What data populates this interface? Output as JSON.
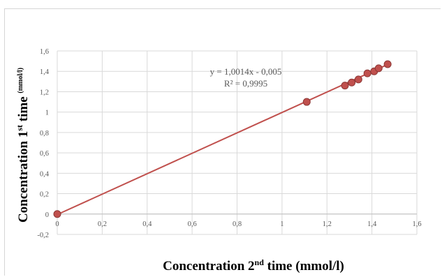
{
  "chart_data": {
    "type": "scatter",
    "xlabel": {
      "main": "Concentration 2",
      "sup": "nd",
      "rest": " time (mmol/l)"
    },
    "ylabel": {
      "main": "Concentration 1",
      "sup": "st",
      "rest": " time ",
      "unit": "(mmol/l)"
    },
    "xlim": [
      0,
      1.6
    ],
    "ylim": [
      -0.2,
      1.6
    ],
    "x_ticks": [
      "0",
      "0,2",
      "0,4",
      "0,6",
      "0,8",
      "1",
      "1,2",
      "1,4",
      "1,6"
    ],
    "y_ticks": [
      "-0,2",
      "0",
      "0,2",
      "0,4",
      "0,6",
      "0,8",
      "1",
      "1,2",
      "1,4",
      "1,6"
    ],
    "grid": true,
    "series": [
      {
        "x": [
          0,
          1.11,
          1.28,
          1.31,
          1.34,
          1.38,
          1.41,
          1.43,
          1.47
        ],
        "y": [
          0,
          1.1,
          1.26,
          1.29,
          1.32,
          1.38,
          1.4,
          1.43,
          1.47
        ],
        "color": "#c0504d"
      }
    ],
    "trendline": {
      "slope": 1.0014,
      "intercept": -0.005,
      "color": "#c0504d"
    },
    "annotations": [
      "y = 1,0014x - 0,005",
      "R² = 0,9995"
    ]
  }
}
